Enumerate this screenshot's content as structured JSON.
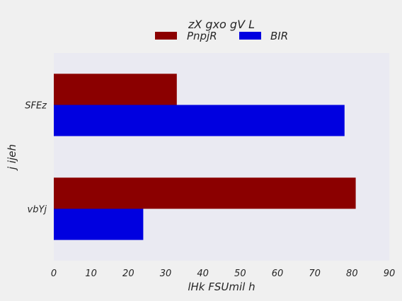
{
  "chart_data": {
    "type": "bar",
    "orientation": "horizontal",
    "legend_title": "zX gxo gV L",
    "legend_placement": "top-center",
    "categories": [
      "SFEz",
      "vbYj"
    ],
    "series": [
      {
        "name": "PnpjR",
        "color": "#8b0000",
        "values": [
          33,
          81
        ]
      },
      {
        "name": "BIR",
        "color": "#0000e0",
        "values": [
          78,
          24
        ]
      }
    ],
    "xlabel": "lHk FSUmil h",
    "ylabel": "j ijeh",
    "xlim": [
      0,
      90
    ],
    "xticks": [
      "0",
      "10",
      "20",
      "30",
      "40",
      "50",
      "60",
      "70",
      "80",
      "90"
    ],
    "grid": false,
    "plot_background": "#eaeaf2",
    "page_background": "#f0f0f0"
  }
}
